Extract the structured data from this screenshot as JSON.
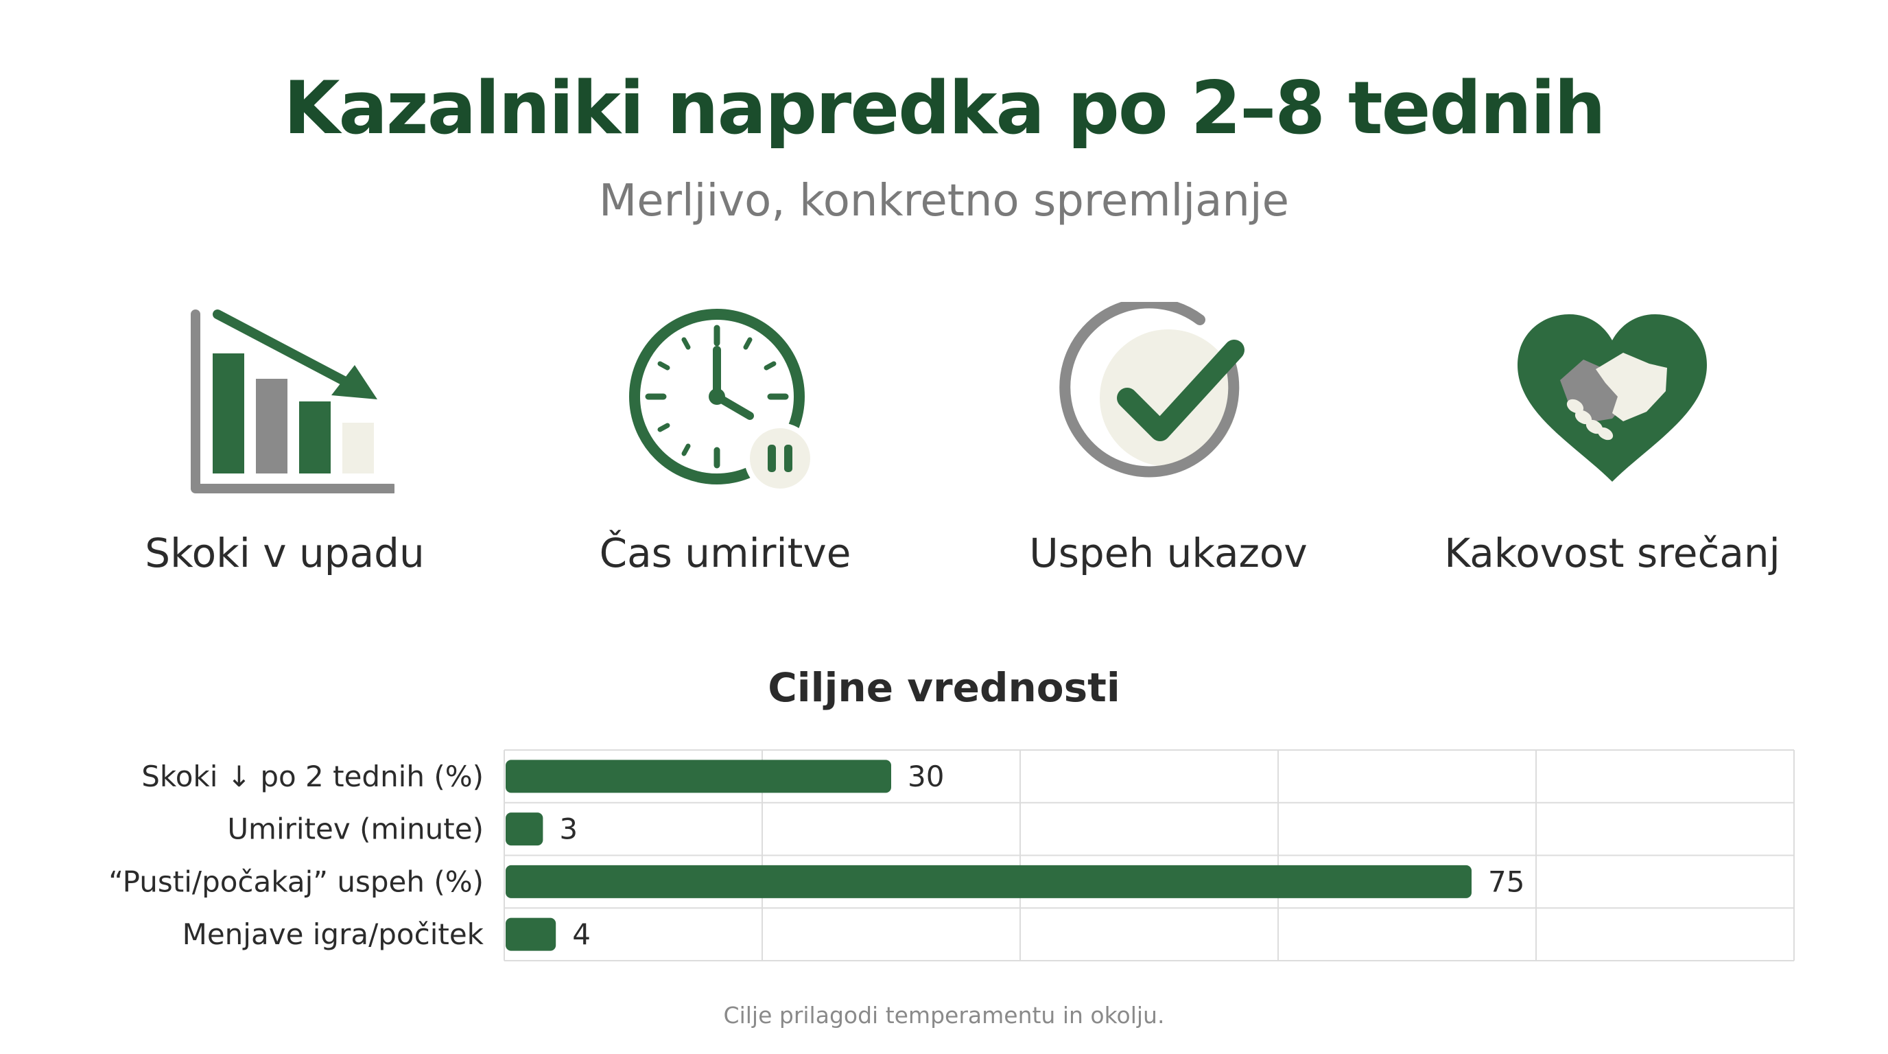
{
  "title": "Kazalniki napredka po 2–8 tednih",
  "subtitle": "Merljivo, konkretno spremljanje",
  "colors": {
    "primary_green": "#2e6b40",
    "dark_green": "#1b4d2c",
    "gray": "#8a8a8a",
    "cream": "#f1f0e6"
  },
  "kpis": [
    {
      "label": "Skoki v upadu",
      "icon": "declining-bar-chart-icon"
    },
    {
      "label": "Čas umiritve",
      "icon": "clock-pause-icon"
    },
    {
      "label": "Uspeh ukazov",
      "icon": "checkmark-circle-icon"
    },
    {
      "label": "Kakovost srečanj",
      "icon": "heart-handshake-icon"
    }
  ],
  "chart_data": {
    "type": "bar",
    "orientation": "horizontal",
    "title": "Ciljne vrednosti",
    "categories": [
      "Skoki ↓ po 2 tednih (%)",
      "Umiritev (minute)",
      "“Pusti/počakaj” uspeh (%)",
      "Menjave igra/počitek"
    ],
    "values": [
      30,
      3,
      75,
      4
    ],
    "data_labels": [
      "30",
      "3",
      "75",
      "4"
    ],
    "xlim": [
      0,
      100
    ],
    "grid": true,
    "legend": "none"
  },
  "footnote": "Cilje prilagodi temperamentu in okolju."
}
